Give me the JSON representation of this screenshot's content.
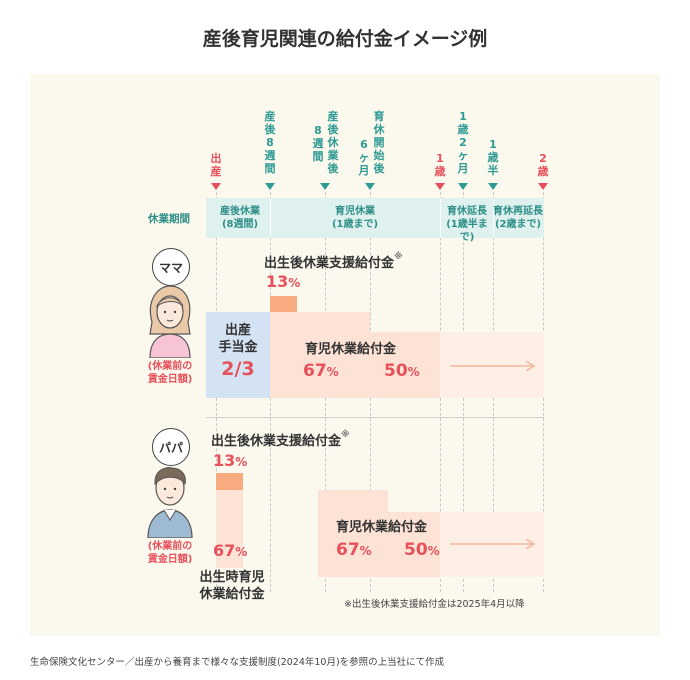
{
  "title": "産後育児関連の給付金イメージ例",
  "source": "生命保険文化センター／出産から養育まで様々な支援制度(2024年10月)を参照の上当社にて作成",
  "markers": {
    "birth": "出産",
    "postpartum8w": "産後8週間",
    "leave_after_8w": "産後休業後8週間",
    "leave_6m": "育休開始後6ヶ月",
    "age1": "1歳",
    "age1_2m": "1歳2ヶ月",
    "age1_half": "1歳半",
    "age2": "2歳"
  },
  "periods": {
    "title": "休業期間",
    "maternity": [
      "産後休業",
      "(8週間)"
    ],
    "childcare": [
      "育児休業",
      "(1歳まで)"
    ],
    "ext1": [
      "育休延長",
      "(1歳半まで)"
    ],
    "ext2": [
      "育休再延長",
      "(2歳まで)"
    ]
  },
  "mama": {
    "label": "ママ",
    "wage_note": [
      "(休業前の",
      "賃金日額)"
    ],
    "support_title": "出生後休業支援給付金",
    "support_mark": "※",
    "support_pct": "13",
    "childbirth_label": [
      "出産",
      "手当金"
    ],
    "childbirth_value": "2/3",
    "childcare_label": "育児休業給付金",
    "pct_67": "67",
    "pct_50": "50",
    "unit": "%"
  },
  "papa": {
    "label": "パパ",
    "wage_note": [
      "(休業前の",
      "賃金日額)"
    ],
    "support_title": "出生後休業支援給付金",
    "support_mark": "※",
    "support_pct": "13",
    "birth_leave_pct": "67",
    "birth_leave_label": [
      "出生時育児",
      "休業給付金"
    ],
    "childcare_label": "育児休業給付金",
    "pct_67": "67",
    "pct_50": "50",
    "unit": "%"
  },
  "footnote": "※出生後休業支援給付金は2025年4月以降",
  "colors": {
    "red": "#e8505b",
    "teal": "#2e9a93",
    "orange": "#f8ab7e",
    "peach": "#fde3d5",
    "blue": "#d3e3f3",
    "mint": "#dff1ee"
  }
}
